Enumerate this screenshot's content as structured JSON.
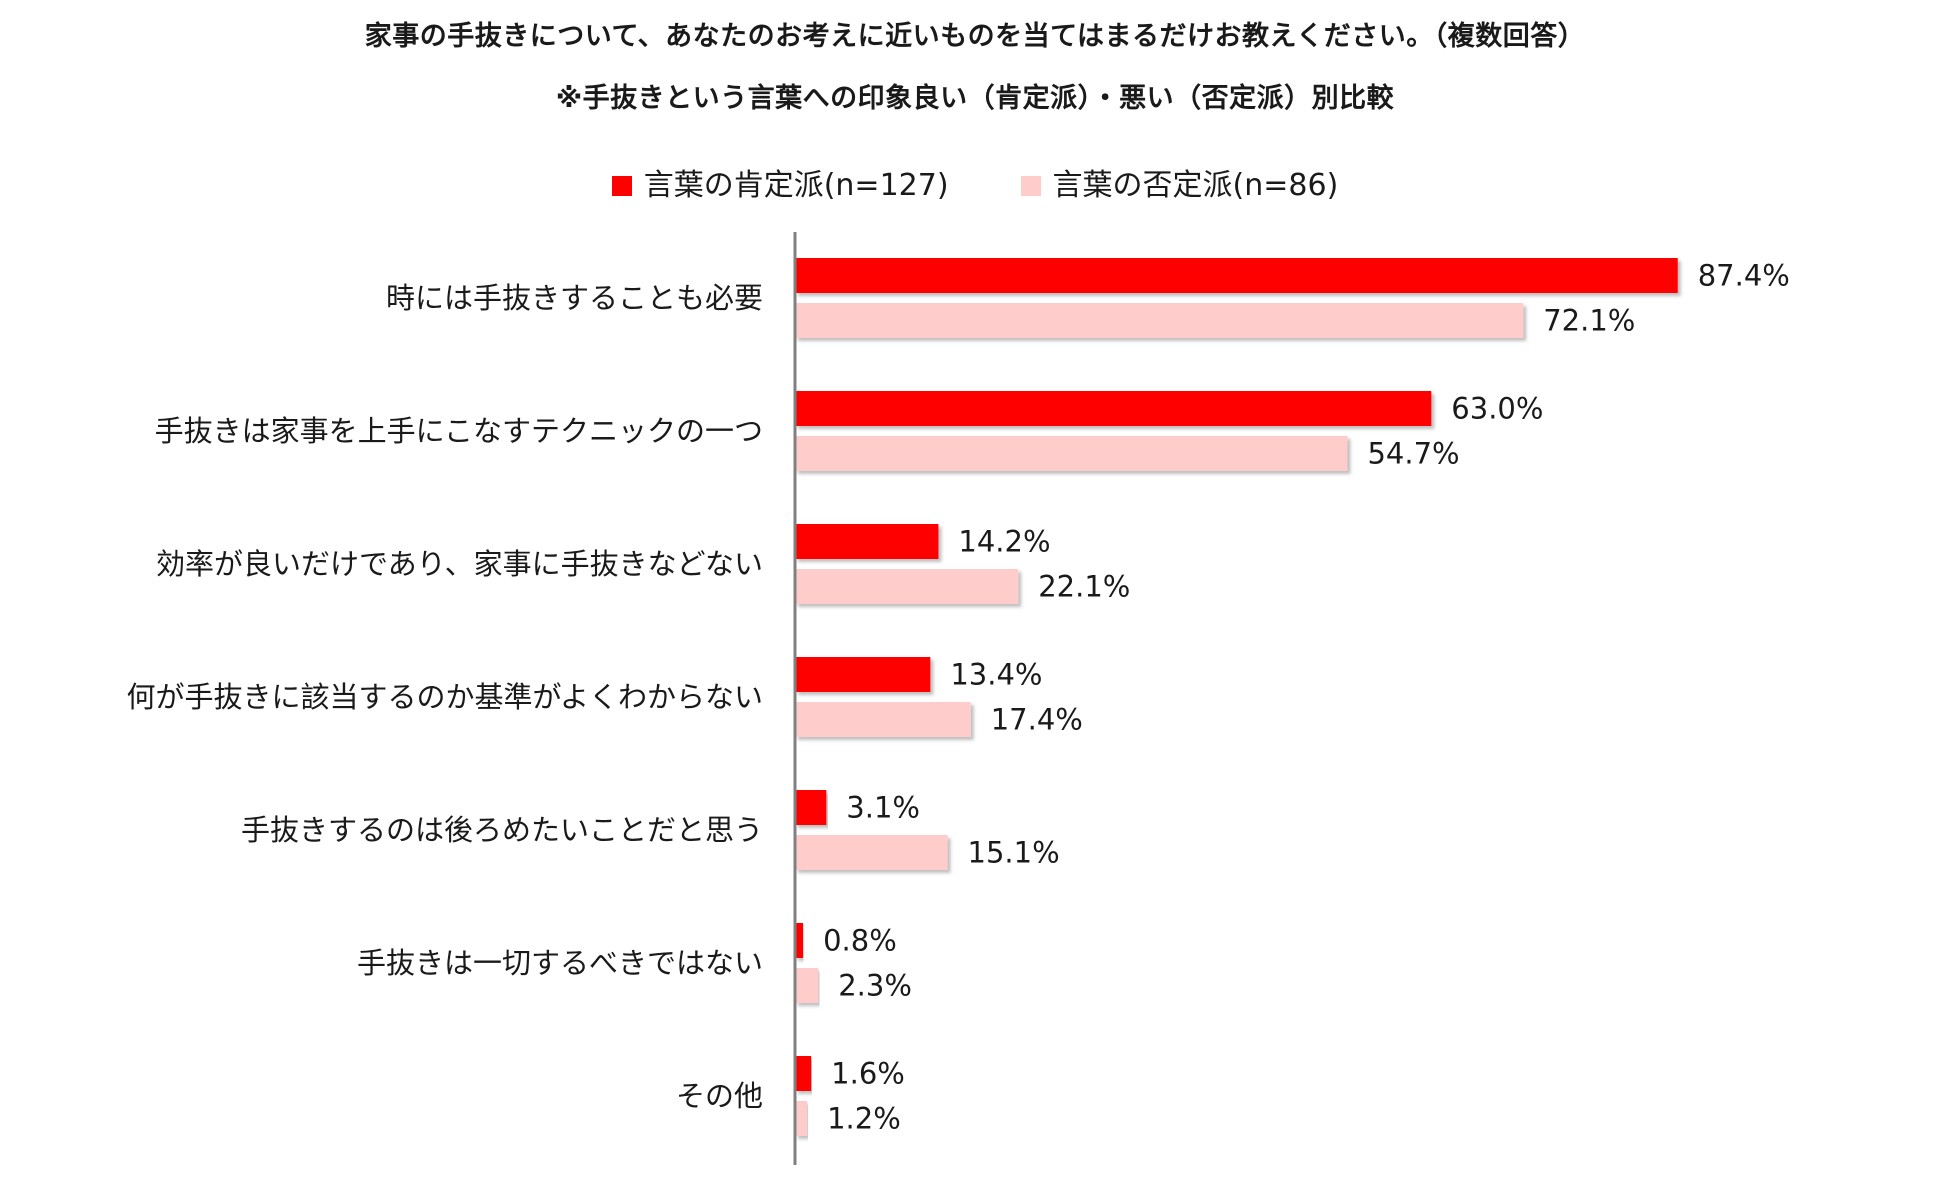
{
  "chart_data": {
    "type": "bar",
    "orientation": "horizontal",
    "title": "家事の手抜きについて、あなたのお考えに近いものを当てはまるだけお教えください。（複数回答）",
    "subtitle": "※手抜きという言葉への印象良い（肯定派）・悪い（否定派）別比較",
    "categories": [
      "時には手抜きすることも必要",
      "手抜きは家事を上手にこなすテクニックの一つ",
      "効率が良いだけであり、家事に手抜きなどない",
      "何が手抜きに該当するのか基準がよくわからない",
      "手抜きするのは後ろめたいことだと思う",
      "手抜きは一切するべきではない",
      "その他"
    ],
    "series": [
      {
        "name": "言葉の肯定派(n=127)",
        "color": "#ff0000",
        "values": [
          87.4,
          63.0,
          14.2,
          13.4,
          3.1,
          0.8,
          1.6
        ],
        "labels": [
          "87.4%",
          "63.0%",
          "14.2%",
          "13.4%",
          "3.1%",
          "0.8%",
          "1.6%"
        ]
      },
      {
        "name": "言葉の否定派(n=86)",
        "color": "#ffcccc",
        "values": [
          72.1,
          54.7,
          22.1,
          17.4,
          15.1,
          2.3,
          1.2
        ],
        "labels": [
          "72.1%",
          "54.7%",
          "22.1%",
          "17.4%",
          "15.1%",
          "2.3%",
          "1.2%"
        ]
      }
    ],
    "xlim": [
      0,
      100
    ],
    "grid": false,
    "legend_position": "top-center"
  }
}
